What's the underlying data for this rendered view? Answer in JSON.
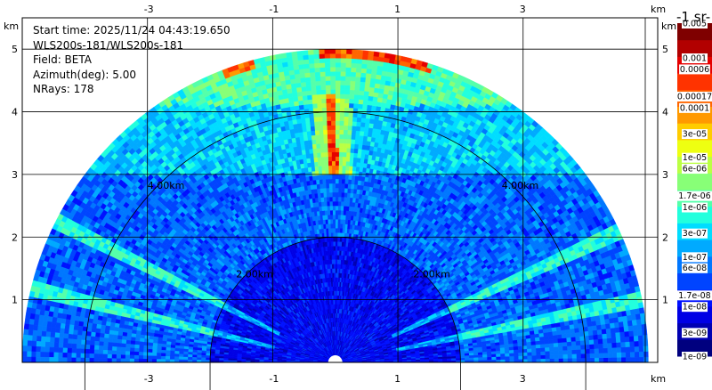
{
  "info": {
    "start_time": "Start time: 2025/11/24 04:43:19.650",
    "instrument": "WLS200s-181/WLS200s-181",
    "field": "Field: BETA",
    "azimuth": "Azimuth(deg): 5.00",
    "nrays": "NRays: 178"
  },
  "chart_data": {
    "type": "heatmap",
    "projection": "RHI polar sector (range vs elevation)",
    "x_unit": "km",
    "y_unit": "km",
    "xlim": [
      -5.0,
      5.15
    ],
    "ylim": [
      0,
      5.5
    ],
    "x_ticks": [
      -3,
      -1,
      1,
      3
    ],
    "x_tick_labels": [
      "-3",
      "-1",
      "1",
      "3"
    ],
    "y_ticks": [
      1,
      2,
      3,
      4,
      5
    ],
    "y_tick_labels": [
      "1",
      "2",
      "3",
      "4",
      "5"
    ],
    "range_rings_km": [
      2,
      4
    ],
    "ring_labels": [
      "2.00km",
      "4.00km"
    ],
    "max_range_km": 5.0,
    "origin_x_km": 0,
    "grid": true,
    "colorbar": {
      "title": "-1 sr-",
      "scale": "log",
      "range": [
        1e-09,
        0.005
      ],
      "colors": [
        "#00007f",
        "#0000b2",
        "#0000e5",
        "#0011ff",
        "#0044ff",
        "#0077ff",
        "#00aaff",
        "#00ddff",
        "#22ffdd",
        "#55ffaa",
        "#88ff77",
        "#bbff44",
        "#eeff11",
        "#ffcc00",
        "#ff9900",
        "#ff6600",
        "#ff3300",
        "#e50000",
        "#b20000",
        "#7f0000"
      ],
      "labels": [
        "1e-09",
        "3e-09",
        "1e-08",
        "1.7e-08",
        "6e-08",
        "1e-07",
        "3e-07",
        "1e-06",
        "1.7e-06",
        "6e-06",
        "1e-05",
        "3e-05",
        "0.0001",
        "0.00017",
        "0.0006",
        "0.001",
        "0.005"
      ]
    },
    "features": [
      {
        "name": "vertical plume",
        "x_km": -0.05,
        "y_range_km": [
          3.0,
          4.3
        ],
        "peak": 0.001
      },
      {
        "name": "upper layer",
        "y_range_km": [
          4.1,
          5.0
        ],
        "level": 1.7e-06
      },
      {
        "name": "mid layer",
        "y_range_km": [
          3.0,
          4.0
        ],
        "level": 3e-07
      },
      {
        "name": "near field",
        "range_km": [
          0,
          2
        ],
        "level": 1e-08
      }
    ]
  }
}
